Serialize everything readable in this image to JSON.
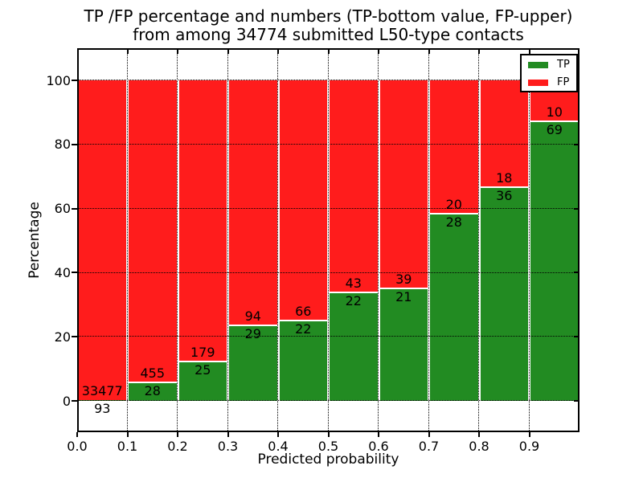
{
  "figure": {
    "title_line1": "TP /FP percentage and numbers (TP-bottom value, FP-upper)",
    "title_line2": "from among 34774 submitted L50-type contacts",
    "xlabel": "Predicted probability",
    "ylabel": "Percentage",
    "background": "#ffffff"
  },
  "chart_data": {
    "type": "bar",
    "variant": "stacked-percentage-histogram",
    "title": "TP /FP percentage and numbers (TP-bottom value, FP-upper) from among 34774 submitted L50-type contacts",
    "xlabel": "Predicted probability",
    "ylabel": "Percentage",
    "total_contacts": 34774,
    "bins": [
      "0.0-0.1",
      "0.1-0.2",
      "0.2-0.3",
      "0.3-0.4",
      "0.4-0.5",
      "0.5-0.6",
      "0.6-0.7",
      "0.7-0.8",
      "0.8-0.9",
      "0.9-1.0"
    ],
    "x_tick_labels": [
      "0.0",
      "0.1",
      "0.2",
      "0.3",
      "0.4",
      "0.5",
      "0.6",
      "0.7",
      "0.8",
      "0.9"
    ],
    "y_ticks": [
      0,
      20,
      40,
      60,
      80,
      100
    ],
    "xlim": [
      0.0,
      1.0
    ],
    "ylim": [
      -10,
      110
    ],
    "grid": "dotted",
    "bar_total_percent": 100,
    "series": [
      {
        "name": "TP",
        "color": "#228B22",
        "counts": [
          93,
          28,
          25,
          29,
          22,
          22,
          21,
          28,
          36,
          69
        ]
      },
      {
        "name": "FP",
        "color": "#ff1c1c",
        "counts": [
          33477,
          455,
          179,
          94,
          66,
          43,
          39,
          20,
          18,
          10
        ]
      }
    ],
    "tp_percent": [
      0.28,
      5.8,
      12.25,
      23.58,
      25.0,
      33.85,
      35.0,
      58.33,
      66.67,
      87.34
    ],
    "legend": {
      "position": "upper right",
      "entries": [
        {
          "label": "TP",
          "color": "#228B22"
        },
        {
          "label": "FP",
          "color": "#ff1c1c"
        }
      ]
    }
  }
}
